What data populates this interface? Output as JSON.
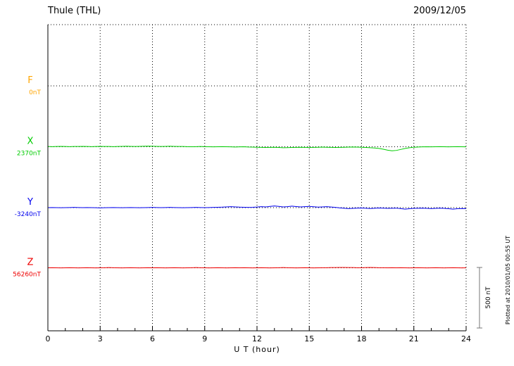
{
  "header": {
    "title": "Thule (THL)",
    "date": "2009/12/05"
  },
  "chart_data": {
    "type": "line",
    "title": "Thule (THL)",
    "date": "2009/12/05",
    "xlabel": "U T (hour)",
    "x_ticks": [
      0,
      3,
      6,
      9,
      12,
      15,
      18,
      21,
      24
    ],
    "xlim": [
      0,
      24
    ],
    "x_unit": "hour",
    "sample_interval_hours": 0.25,
    "values_unit": "nT deviation from baseline",
    "grid": "dotted",
    "scale_bar": {
      "label": "500 nT",
      "nT": 500
    },
    "plotted_at": "Plotted at 2010/01/05 00:55 UT",
    "series": [
      {
        "name": "F",
        "baseline_label": "0nT",
        "baseline_nT": 0,
        "color": "#ffa500",
        "values": []
      },
      {
        "name": "X",
        "baseline_label": "2370nT",
        "baseline_nT": 2370,
        "color": "#00cc00",
        "values": [
          2,
          1,
          2,
          3,
          2,
          1,
          2,
          2,
          3,
          2,
          1,
          2,
          3,
          2,
          2,
          1,
          2,
          3,
          4,
          3,
          2,
          3,
          4,
          5,
          4,
          3,
          2,
          3,
          4,
          3,
          2,
          2,
          1,
          0,
          1,
          2,
          1,
          0,
          -1,
          0,
          1,
          0,
          -1,
          -2,
          -1,
          0,
          -2,
          -3,
          -4,
          -5,
          -6,
          -5,
          -4,
          -6,
          -8,
          -7,
          -6,
          -5,
          -4,
          -5,
          -6,
          -5,
          -4,
          -3,
          -4,
          -5,
          -6,
          -5,
          -4,
          -3,
          -2,
          -3,
          -4,
          -6,
          -8,
          -10,
          -14,
          -20,
          -28,
          -33,
          -30,
          -22,
          -14,
          -8,
          -4,
          -2,
          -1,
          0,
          -1,
          0,
          1,
          0,
          -1,
          0,
          1,
          0,
          -1
        ]
      },
      {
        "name": "Y",
        "baseline_label": "-3240nT",
        "baseline_nT": -3240,
        "color": "#0000ee",
        "values": [
          0,
          1,
          0,
          -1,
          0,
          1,
          2,
          1,
          0,
          1,
          0,
          -1,
          -2,
          -1,
          0,
          1,
          0,
          -1,
          0,
          1,
          0,
          -1,
          0,
          1,
          2,
          1,
          0,
          1,
          2,
          1,
          0,
          -1,
          0,
          1,
          2,
          1,
          0,
          1,
          2,
          3,
          4,
          6,
          8,
          6,
          4,
          3,
          2,
          3,
          5,
          8,
          6,
          10,
          14,
          10,
          6,
          8,
          12,
          9,
          6,
          8,
          10,
          7,
          4,
          6,
          8,
          5,
          2,
          -2,
          -5,
          -8,
          -6,
          -4,
          -3,
          -5,
          -7,
          -5,
          -3,
          -4,
          -6,
          -5,
          -4,
          -8,
          -12,
          -9,
          -6,
          -5,
          -4,
          -6,
          -8,
          -6,
          -4,
          -6,
          -9,
          -12,
          -9,
          -7,
          -8
        ]
      },
      {
        "name": "Z",
        "baseline_label": "56260nT",
        "baseline_nT": 56260,
        "color": "#ee0000",
        "values": [
          0,
          1,
          0,
          -1,
          0,
          1,
          0,
          -1,
          0,
          1,
          0,
          -1,
          0,
          1,
          2,
          1,
          0,
          -1,
          0,
          1,
          0,
          -1,
          0,
          1,
          0,
          1,
          0,
          -1,
          0,
          1,
          0,
          -1,
          0,
          1,
          2,
          1,
          0,
          -1,
          0,
          1,
          0,
          -1,
          0,
          1,
          0,
          1,
          0,
          -1,
          0,
          1,
          0,
          -1,
          0,
          1,
          2,
          1,
          0,
          -1,
          0,
          1,
          0,
          -1,
          0,
          1,
          1,
          2,
          2,
          3,
          3,
          2,
          2,
          1,
          1,
          2,
          3,
          2,
          1,
          1,
          0,
          1,
          0,
          1,
          0,
          -1,
          0,
          1,
          0,
          -1,
          0,
          1,
          0,
          -1,
          0,
          1,
          0,
          -1,
          0
        ]
      }
    ]
  }
}
